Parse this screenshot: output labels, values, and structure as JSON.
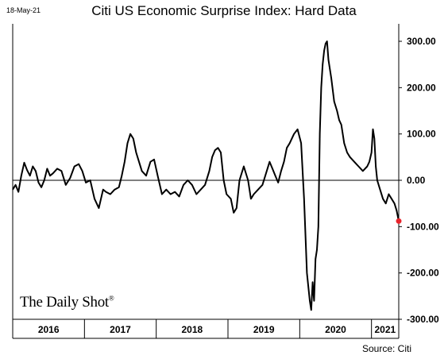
{
  "header": {
    "date": "18-May-21",
    "title": "Citi US Economic Surprise Index: Hard Data"
  },
  "footer": {
    "source": "Source: Citi",
    "brand": "The Daily Shot"
  },
  "colors": {
    "line": "#000000",
    "last_point": "#e8242b",
    "zero_line": "#000000"
  },
  "chart_data": {
    "type": "line",
    "title": "Citi US Economic Surprise Index: Hard Data",
    "xlabel": "",
    "ylabel": "",
    "x_range": [
      2016.0,
      2021.38
    ],
    "ylim": [
      -300,
      300
    ],
    "y_ticks": [
      300,
      200,
      100,
      0,
      -100,
      -200,
      -300
    ],
    "y_tick_labels": [
      "300.00",
      "200.00",
      "100.00",
      "0.00",
      "-100.00",
      "-200.00",
      "-300.00"
    ],
    "x_tick_labels": [
      {
        "label": "2016",
        "center": 2016.5
      },
      {
        "label": "2017",
        "center": 2017.5
      },
      {
        "label": "2018",
        "center": 2018.5
      },
      {
        "label": "2019",
        "center": 2019.5
      },
      {
        "label": "2020",
        "center": 2020.5
      },
      {
        "label": "2021",
        "center": 2021.19
      }
    ],
    "x_dividers": [
      2017,
      2018,
      2019,
      2020,
      2021
    ],
    "grid": false,
    "series": [
      {
        "x": [
          2016.0,
          2016.04,
          2016.08,
          2016.12,
          2016.16,
          2016.2,
          2016.24,
          2016.28,
          2016.32,
          2016.36,
          2016.4,
          2016.44,
          2016.48,
          2016.52,
          2016.56,
          2016.62,
          2016.68,
          2016.74,
          2016.8,
          2016.86,
          2016.92,
          2016.97,
          2017.02,
          2017.08,
          2017.14,
          2017.2,
          2017.26,
          2017.3,
          2017.36,
          2017.42,
          2017.48,
          2017.52,
          2017.56,
          2017.6,
          2017.64,
          2017.68,
          2017.72,
          2017.76,
          2017.8,
          2017.86,
          2017.92,
          2017.97,
          2018.02,
          2018.08,
          2018.14,
          2018.2,
          2018.26,
          2018.32,
          2018.38,
          2018.44,
          2018.5,
          2018.56,
          2018.62,
          2018.68,
          2018.74,
          2018.78,
          2018.82,
          2018.86,
          2018.9,
          2018.94,
          2018.98,
          2019.04,
          2019.08,
          2019.12,
          2019.16,
          2019.22,
          2019.28,
          2019.32,
          2019.36,
          2019.42,
          2019.48,
          2019.52,
          2019.58,
          2019.62,
          2019.66,
          2019.7,
          2019.74,
          2019.78,
          2019.82,
          2019.86,
          2019.92,
          2019.97,
          2020.02,
          2020.06,
          2020.1,
          2020.14,
          2020.16,
          2020.18,
          2020.2,
          2020.22,
          2020.24,
          2020.26,
          2020.28,
          2020.3,
          2020.32,
          2020.34,
          2020.36,
          2020.38,
          2020.4,
          2020.44,
          2020.48,
          2020.52,
          2020.55,
          2020.58,
          2020.62,
          2020.66,
          2020.7,
          2020.76,
          2020.82,
          2020.88,
          2020.94,
          2020.97,
          2021.0,
          2021.02,
          2021.04,
          2021.06,
          2021.08,
          2021.12,
          2021.16,
          2021.2,
          2021.24,
          2021.28,
          2021.32,
          2021.35,
          2021.38
        ],
        "values": [
          -20,
          -10,
          -25,
          10,
          38,
          22,
          10,
          30,
          20,
          -5,
          -15,
          0,
          25,
          10,
          15,
          25,
          20,
          -10,
          5,
          30,
          35,
          20,
          -5,
          0,
          -40,
          -60,
          -20,
          -25,
          -30,
          -20,
          -15,
          10,
          40,
          80,
          100,
          90,
          60,
          40,
          20,
          10,
          40,
          45,
          10,
          -30,
          -20,
          -30,
          -25,
          -35,
          -10,
          0,
          -10,
          -30,
          -20,
          -10,
          20,
          50,
          65,
          70,
          60,
          0,
          -30,
          -40,
          -70,
          -60,
          0,
          30,
          0,
          -40,
          -30,
          -20,
          -10,
          10,
          40,
          25,
          10,
          -5,
          20,
          40,
          70,
          80,
          100,
          110,
          80,
          -40,
          -200,
          -260,
          -280,
          -220,
          -260,
          -170,
          -150,
          -100,
          100,
          200,
          250,
          280,
          295,
          300,
          260,
          220,
          170,
          150,
          130,
          120,
          80,
          60,
          50,
          40,
          30,
          20,
          30,
          40,
          60,
          110,
          90,
          30,
          0,
          -20,
          -40,
          -50,
          -30,
          -40,
          -50,
          -65,
          -88
        ]
      }
    ],
    "last_point": {
      "x": 2021.38,
      "value": -88
    }
  }
}
